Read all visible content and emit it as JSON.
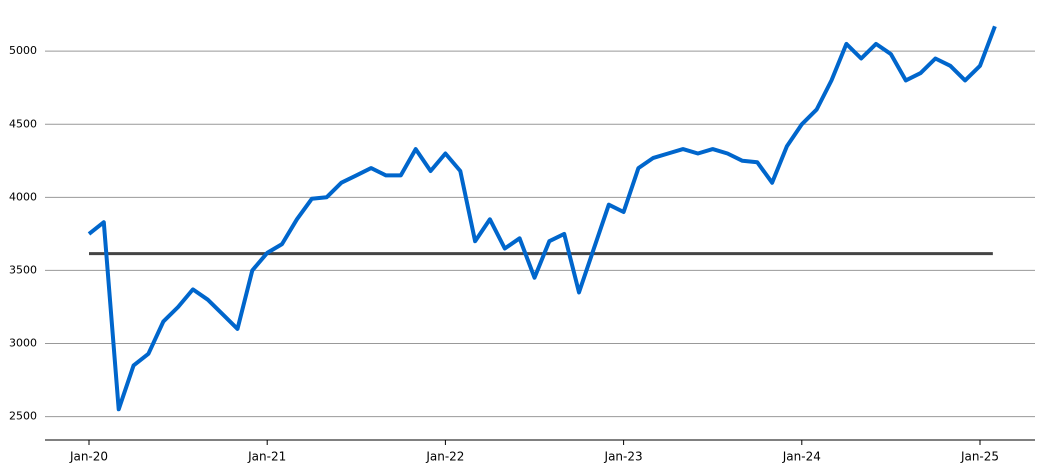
{
  "chart_data": {
    "type": "line",
    "x": [
      "2020-01",
      "2020-02",
      "2020-03",
      "2020-04",
      "2020-05",
      "2020-06",
      "2020-07",
      "2020-08",
      "2020-09",
      "2020-10",
      "2020-11",
      "2020-12",
      "2021-01",
      "2021-02",
      "2021-03",
      "2021-04",
      "2021-05",
      "2021-06",
      "2021-07",
      "2021-08",
      "2021-09",
      "2021-10",
      "2021-11",
      "2021-12",
      "2022-01",
      "2022-02",
      "2022-03",
      "2022-04",
      "2022-05",
      "2022-06",
      "2022-07",
      "2022-08",
      "2022-09",
      "2022-10",
      "2022-11",
      "2022-12",
      "2023-01",
      "2023-02",
      "2023-03",
      "2023-04",
      "2023-05",
      "2023-06",
      "2023-07",
      "2023-08",
      "2023-09",
      "2023-10",
      "2023-11",
      "2023-12",
      "2024-01",
      "2024-02",
      "2024-03",
      "2024-04",
      "2024-05",
      "2024-06",
      "2024-07",
      "2024-08",
      "2024-09",
      "2024-10",
      "2024-11",
      "2024-12",
      "2025-01",
      "2025-02"
    ],
    "series": [
      {
        "color": "#0066cc",
        "values": [
          3750,
          3830,
          2550,
          2850,
          2930,
          3150,
          3250,
          3370,
          3300,
          3200,
          3100,
          3500,
          3620,
          3680,
          3850,
          3990,
          4000,
          4100,
          4150,
          4200,
          4150,
          4150,
          4330,
          4180,
          4300,
          4180,
          3700,
          3850,
          3650,
          3720,
          3450,
          3700,
          3750,
          3350,
          3650,
          3950,
          3900,
          4200,
          4270,
          4300,
          4330,
          4300,
          4330,
          4300,
          4250,
          4240,
          4100,
          4350,
          4500,
          4600,
          4800,
          5050,
          4950,
          5050,
          4980,
          4800,
          4850,
          4950,
          4900,
          4800,
          4900,
          5170
        ]
      }
    ],
    "reference_line": {
      "value": 3615,
      "color": "#444444"
    },
    "ylim": [
      2340,
      5350
    ],
    "yticks": [
      2500,
      3000,
      3500,
      4000,
      4500,
      5000
    ],
    "xticks": [
      {
        "value": "2020-01",
        "label": "Jan-20"
      },
      {
        "value": "2021-01",
        "label": "Jan-21"
      },
      {
        "value": "2022-01",
        "label": "Jan-22"
      },
      {
        "value": "2023-01",
        "label": "Jan-23"
      },
      {
        "value": "2024-01",
        "label": "Jan-24"
      },
      {
        "value": "2025-01",
        "label": "Jan-25"
      }
    ],
    "grid": true
  }
}
